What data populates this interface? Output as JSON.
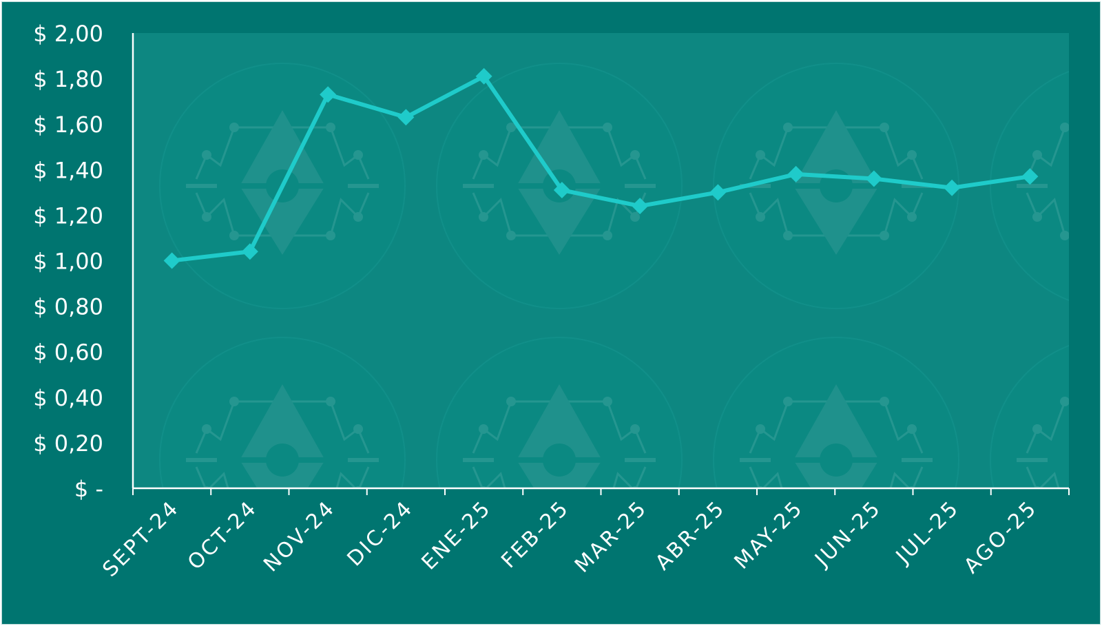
{
  "chart_data": {
    "type": "line",
    "title": "",
    "xlabel": "",
    "ylabel": "",
    "categories": [
      "SEPT-24",
      "OCT-24",
      "NOV-24",
      "DIC-24",
      "ENE-25",
      "FEB-25",
      "MAR-25",
      "ABR-25",
      "MAY-25",
      "JUN-25",
      "JUL-25",
      "AGO-25"
    ],
    "series": [
      {
        "values": [
          1.0,
          1.04,
          1.73,
          1.63,
          1.81,
          1.31,
          1.24,
          1.3,
          1.38,
          1.36,
          1.32,
          1.37
        ]
      }
    ],
    "ylim": [
      0,
      2.0
    ],
    "y_ticks": [
      {
        "value": 2.0,
        "label": "$ 2,00"
      },
      {
        "value": 1.8,
        "label": "$ 1,80"
      },
      {
        "value": 1.6,
        "label": "$ 1,60"
      },
      {
        "value": 1.4,
        "label": "$ 1,40"
      },
      {
        "value": 1.2,
        "label": "$ 1,20"
      },
      {
        "value": 1.0,
        "label": "$ 1,00"
      },
      {
        "value": 0.8,
        "label": "$ 0,80"
      },
      {
        "value": 0.6,
        "label": "$ 0,60"
      },
      {
        "value": 0.4,
        "label": "$ 0,40"
      },
      {
        "value": 0.2,
        "label": "$ 0,20"
      },
      {
        "value": 0.0,
        "label": "$ -"
      }
    ],
    "grid": false,
    "legend": "none",
    "marker": "diamond",
    "colors": {
      "background": "#007570",
      "plot_area": "#0d8781",
      "line": "#1fcbca",
      "axis": "#ffffff",
      "text": "#ffffff"
    }
  }
}
